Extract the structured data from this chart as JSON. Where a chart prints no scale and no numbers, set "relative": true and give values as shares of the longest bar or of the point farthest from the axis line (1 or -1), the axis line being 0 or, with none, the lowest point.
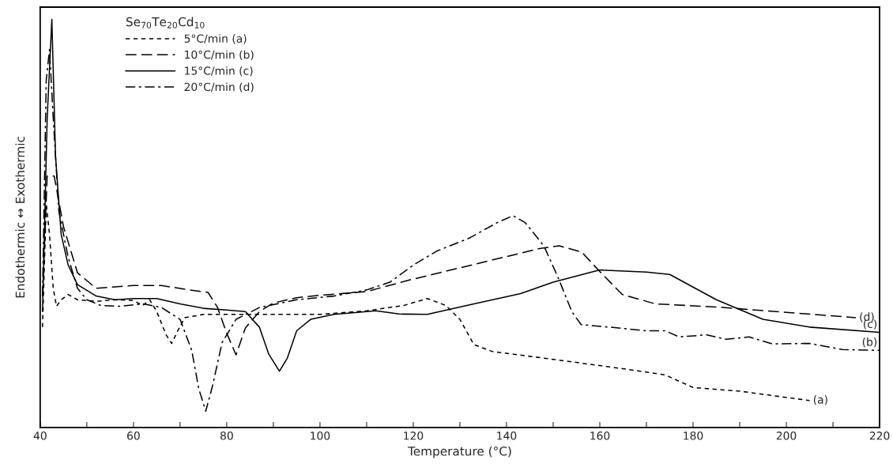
{
  "chart_data": {
    "type": "line",
    "relative": true,
    "xlabel": "Temperature (°C)",
    "ylabel": "Endothermic ↔ Exothermic",
    "legend_title": "Se$_{70}$Te$_{20}$Cd$_{10}$",
    "legend": "top left",
    "xlim": [
      40,
      220
    ],
    "xticks": [
      40,
      {
        "value": 50,
        "label": null
      },
      60,
      {
        "value": 70,
        "label": null
      },
      80,
      {
        "value": 90,
        "label": null
      },
      100,
      {
        "value": 110,
        "label": null
      },
      120,
      {
        "value": 130,
        "label": null
      },
      140,
      {
        "value": 150,
        "label": null
      },
      160,
      {
        "value": 170,
        "label": null
      },
      180,
      {
        "value": 190,
        "label": null
      },
      200,
      {
        "value": 210,
        "label": null
      },
      220
    ],
    "grid": false,
    "marker": "none",
    "series": [
      {
        "name": "5°C/min (a)",
        "color": "#000000",
        "line_style": "dotted",
        "x": [
          40.5,
          41.3,
          42,
          42.8,
          43.5,
          44.5,
          46,
          48,
          52,
          56,
          60,
          62,
          63.5,
          65,
          67,
          68.2,
          69.5,
          71,
          75,
          85,
          100,
          110,
          118,
          123,
          127,
          130,
          133,
          137,
          150,
          165,
          174,
          180,
          190,
          205
        ],
        "values": [
          0.246,
          0.549,
          0.473,
          0.341,
          0.297,
          0.313,
          0.326,
          0.313,
          0.309,
          0.313,
          0.311,
          0.299,
          0.313,
          0.284,
          0.227,
          0.206,
          0.237,
          0.269,
          0.277,
          0.277,
          0.277,
          0.286,
          0.299,
          0.316,
          0.299,
          0.265,
          0.203,
          0.186,
          0.167,
          0.144,
          0.129,
          0.098,
          0.089,
          0.066
        ]
      },
      {
        "name": "10°C/min (b)",
        "color": "#000000",
        "line_style": "dashed",
        "x": [
          40.5,
          41.5,
          43,
          45,
          48,
          52,
          60,
          66,
          72,
          76,
          78,
          80,
          82,
          84,
          87,
          90,
          95,
          100,
          110,
          118.7,
          147.3,
          151.3,
          156.1,
          160.1,
          164.8,
          171.9,
          185.4,
          214.9
        ],
        "values": [
          0.322,
          0.616,
          0.616,
          0.492,
          0.379,
          0.341,
          0.348,
          0.348,
          0.337,
          0.331,
          0.295,
          0.231,
          0.178,
          0.244,
          0.284,
          0.305,
          0.318,
          0.324,
          0.333,
          0.36,
          0.439,
          0.445,
          0.43,
          0.381,
          0.326,
          0.303,
          0.295,
          0.269
        ]
      },
      {
        "name": "15°C/min (c)",
        "color": "#000000",
        "line_style": "solid",
        "x": [
          40.5,
          41.5,
          42.5,
          43.3,
          44.5,
          46,
          48,
          52,
          56,
          60,
          65,
          70,
          75,
          80,
          84,
          87,
          89,
          91.3,
          93,
          95,
          98,
          103,
          112,
          117,
          123,
          133,
          143,
          150,
          160,
          170,
          175,
          185,
          195,
          205,
          220
        ],
        "values": [
          0.284,
          0.758,
          1.0,
          0.663,
          0.473,
          0.398,
          0.35,
          0.322,
          0.313,
          0.316,
          0.316,
          0.303,
          0.292,
          0.288,
          0.284,
          0.246,
          0.18,
          0.138,
          0.17,
          0.237,
          0.265,
          0.277,
          0.286,
          0.278,
          0.277,
          0.303,
          0.328,
          0.356,
          0.386,
          0.381,
          0.375,
          0.313,
          0.265,
          0.246,
          0.233
        ]
      },
      {
        "name": "20°C/min (d)",
        "color": "#000000",
        "line_style": "dashdot",
        "x": [
          40.5,
          41.3,
          42,
          42.8,
          44,
          46,
          48,
          50,
          53,
          57,
          62,
          66,
          70,
          72.5,
          74,
          75.5,
          77,
          79,
          82,
          87,
          95,
          103,
          110,
          115,
          120,
          125,
          132,
          138,
          141.4,
          144,
          148,
          151,
          154,
          156,
          162,
          170,
          174,
          177,
          183,
          187,
          192,
          197,
          205,
          212,
          220
        ],
        "values": [
          0.322,
          0.852,
          0.926,
          0.758,
          0.53,
          0.417,
          0.341,
          0.313,
          0.299,
          0.297,
          0.303,
          0.294,
          0.265,
          0.189,
          0.095,
          0.04,
          0.104,
          0.208,
          0.265,
          0.294,
          0.313,
          0.322,
          0.337,
          0.356,
          0.398,
          0.432,
          0.464,
          0.502,
          0.519,
          0.502,
          0.445,
          0.369,
          0.284,
          0.252,
          0.246,
          0.237,
          0.237,
          0.222,
          0.227,
          0.216,
          0.222,
          0.205,
          0.206,
          0.191,
          0.189
        ]
      }
    ],
    "annotations": [
      {
        "text": "(a)",
        "x": 205,
        "y": 0.066
      },
      {
        "text": "(b)",
        "x": 220,
        "y": 0.189
      },
      {
        "text": "(c)",
        "x": 220,
        "y": 0.233
      },
      {
        "text": "(d)",
        "x": 214.9,
        "y": 0.269
      }
    ]
  }
}
